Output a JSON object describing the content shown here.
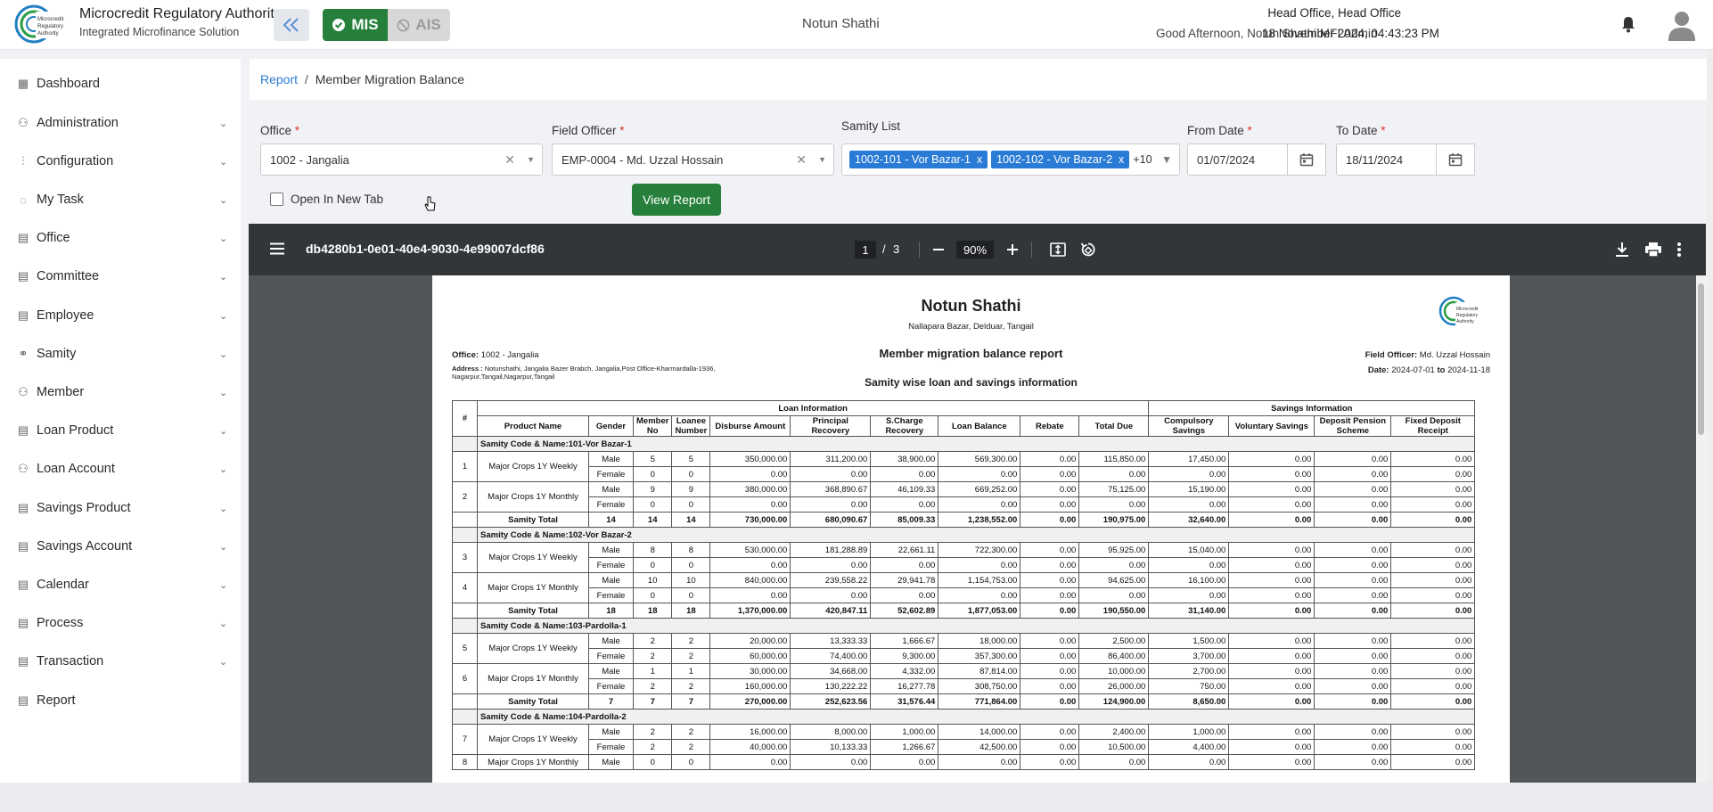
{
  "header": {
    "org_name": "Microcredit Regulatory Authority",
    "org_subtitle": "Integrated Microfinance Solution",
    "mis_label": "MIS",
    "ais_label": "AIS",
    "center_title": "Notun Shathi",
    "location": "Head Office, Head Office",
    "greeting": "Good Afternoon, Notun Shathi MFI Admin",
    "datetime": "18 November 2024, 04:43:23 PM"
  },
  "sidebar": {
    "items": [
      {
        "label": "Dashboard",
        "icon": "grid-icon"
      },
      {
        "label": "Administration",
        "icon": "admin-icon"
      },
      {
        "label": "Configuration",
        "icon": "sliders-icon"
      },
      {
        "label": "My Task",
        "icon": "task-icon"
      },
      {
        "label": "Office",
        "icon": "office-icon"
      },
      {
        "label": "Committee",
        "icon": "committee-icon"
      },
      {
        "label": "Employee",
        "icon": "employee-icon"
      },
      {
        "label": "Samity",
        "icon": "samity-icon"
      },
      {
        "label": "Member",
        "icon": "member-icon"
      },
      {
        "label": "Loan Product",
        "icon": "loan-product-icon"
      },
      {
        "label": "Loan Account",
        "icon": "loan-account-icon"
      },
      {
        "label": "Savings Product",
        "icon": "savings-product-icon"
      },
      {
        "label": "Savings Account",
        "icon": "savings-account-icon"
      },
      {
        "label": "Calendar",
        "icon": "calendar-icon"
      },
      {
        "label": "Process",
        "icon": "process-icon"
      },
      {
        "label": "Transaction",
        "icon": "transaction-icon"
      },
      {
        "label": "Report",
        "icon": "report-icon"
      }
    ]
  },
  "breadcrumb": {
    "root": "Report",
    "sep": "/",
    "current": "Member Migration Balance"
  },
  "filters": {
    "office_label": "Office",
    "office_value": "1002 - Jangalia",
    "fo_label": "Field Officer",
    "fo_value": "EMP-0004 - Md. Uzzal Hossain",
    "samity_label": "Samity List",
    "samity_chips": [
      "1002-101 - Vor Bazar-1",
      "1002-102 - Vor Bazar-2"
    ],
    "samity_more": "+10",
    "from_label": "From Date",
    "from_value": "01/07/2024",
    "to_label": "To Date",
    "to_value": "18/11/2024",
    "new_tab_label": "Open In New Tab",
    "view_button": "View Report",
    "required_mark": "*"
  },
  "pdf": {
    "filename": "db4280b1-0e01-40e4-9030-4e99007dcf86",
    "page_current": "1",
    "page_sep": "/",
    "page_total": "3",
    "zoom": "90%"
  },
  "report": {
    "org": "Notun Shathi",
    "org_address": "Nallapara Bazar, Delduar, Tangail",
    "office_label": "Office:",
    "office": "1002 - Jangalia",
    "address_label": "Address :",
    "address_line1": "Notunshathi, Jangalia Bazer Brabch, Jangalia,Post Office-Kharmardalla-1936,",
    "address_line2": "Nagarpur,Tangail,Nagarpur,Tangail",
    "title": "Member migration balance report",
    "subtitle": "Samity wise loan and savings information",
    "fo_label": "Field Officer:",
    "fo": "Md. Uzzal Hossain",
    "date_label": "Date:",
    "date_from": "2024-07-01",
    "date_to_word": "to",
    "date_to": "2024-11-18",
    "group_loan": "Loan Information",
    "group_savings": "Savings Information",
    "columns": [
      "#",
      "Product Name",
      "Gender",
      "Member No",
      "Loanee Number",
      "Disburse Amount",
      "Principal Recovery",
      "S.Charge Recovery",
      "Loan Balance",
      "Rebate",
      "Total Due",
      "Compulsory Savings",
      "Voluntary Savings",
      "Deposit Pension Scheme",
      "Fixed Deposit Receipt"
    ],
    "sections": [
      {
        "name": "Samity Code & Name:101-Vor Bazar-1",
        "rows": [
          {
            "no": "1",
            "product": "Major Crops 1Y Weekly",
            "lines": [
              [
                "Male",
                "5",
                "5",
                "350,000.00",
                "311,200.00",
                "38,900.00",
                "569,300.00",
                "0.00",
                "115,850.00",
                "17,450.00",
                "0.00",
                "0.00",
                "0.00"
              ],
              [
                "Female",
                "0",
                "0",
                "0.00",
                "0.00",
                "0.00",
                "0.00",
                "0.00",
                "0.00",
                "0.00",
                "0.00",
                "0.00",
                "0.00"
              ]
            ]
          },
          {
            "no": "2",
            "product": "Major Crops 1Y Monthly",
            "lines": [
              [
                "Male",
                "9",
                "9",
                "380,000.00",
                "368,890.67",
                "46,109.33",
                "669,252.00",
                "0.00",
                "75,125.00",
                "15,190.00",
                "0.00",
                "0.00",
                "0.00"
              ],
              [
                "Female",
                "0",
                "0",
                "0.00",
                "0.00",
                "0.00",
                "0.00",
                "0.00",
                "0.00",
                "0.00",
                "0.00",
                "0.00",
                "0.00"
              ]
            ]
          }
        ],
        "total": [
          "Samity Total",
          "14",
          "14",
          "14",
          "730,000.00",
          "680,090.67",
          "85,009.33",
          "1,238,552.00",
          "0.00",
          "190,975.00",
          "32,640.00",
          "0.00",
          "0.00",
          "0.00"
        ]
      },
      {
        "name": "Samity Code & Name:102-Vor Bazar-2",
        "rows": [
          {
            "no": "3",
            "product": "Major Crops 1Y Weekly",
            "lines": [
              [
                "Male",
                "8",
                "8",
                "530,000.00",
                "181,288.89",
                "22,661.11",
                "722,300.00",
                "0.00",
                "95,925.00",
                "15,040.00",
                "0.00",
                "0.00",
                "0.00"
              ],
              [
                "Female",
                "0",
                "0",
                "0.00",
                "0.00",
                "0.00",
                "0.00",
                "0.00",
                "0.00",
                "0.00",
                "0.00",
                "0.00",
                "0.00"
              ]
            ]
          },
          {
            "no": "4",
            "product": "Major Crops 1Y Monthly",
            "lines": [
              [
                "Male",
                "10",
                "10",
                "840,000.00",
                "239,558.22",
                "29,941.78",
                "1,154,753.00",
                "0.00",
                "94,625.00",
                "16,100.00",
                "0.00",
                "0.00",
                "0.00"
              ],
              [
                "Female",
                "0",
                "0",
                "0.00",
                "0.00",
                "0.00",
                "0.00",
                "0.00",
                "0.00",
                "0.00",
                "0.00",
                "0.00",
                "0.00"
              ]
            ]
          }
        ],
        "total": [
          "Samity Total",
          "18",
          "18",
          "18",
          "1,370,000.00",
          "420,847.11",
          "52,602.89",
          "1,877,053.00",
          "0.00",
          "190,550.00",
          "31,140.00",
          "0.00",
          "0.00",
          "0.00"
        ]
      },
      {
        "name": "Samity Code & Name:103-Pardolla-1",
        "rows": [
          {
            "no": "5",
            "product": "Major Crops 1Y Weekly",
            "lines": [
              [
                "Male",
                "2",
                "2",
                "20,000.00",
                "13,333.33",
                "1,666.67",
                "18,000.00",
                "0.00",
                "2,500.00",
                "1,500.00",
                "0.00",
                "0.00",
                "0.00"
              ],
              [
                "Female",
                "2",
                "2",
                "60,000.00",
                "74,400.00",
                "9,300.00",
                "357,300.00",
                "0.00",
                "86,400.00",
                "3,700.00",
                "0.00",
                "0.00",
                "0.00"
              ]
            ]
          },
          {
            "no": "6",
            "product": "Major Crops 1Y Monthly",
            "lines": [
              [
                "Male",
                "1",
                "1",
                "30,000.00",
                "34,668.00",
                "4,332.00",
                "87,814.00",
                "0.00",
                "10,000.00",
                "2,700.00",
                "0.00",
                "0.00",
                "0.00"
              ],
              [
                "Female",
                "2",
                "2",
                "160,000.00",
                "130,222.22",
                "16,277.78",
                "308,750.00",
                "0.00",
                "26,000.00",
                "750.00",
                "0.00",
                "0.00",
                "0.00"
              ]
            ]
          }
        ],
        "total": [
          "Samity Total",
          "7",
          "7",
          "7",
          "270,000.00",
          "252,623.56",
          "31,576.44",
          "771,864.00",
          "0.00",
          "124,900.00",
          "8,650.00",
          "0.00",
          "0.00",
          "0.00"
        ]
      },
      {
        "name": "Samity Code & Name:104-Pardolla-2",
        "rows": [
          {
            "no": "7",
            "product": "Major Crops 1Y Weekly",
            "lines": [
              [
                "Male",
                "2",
                "2",
                "16,000.00",
                "8,000.00",
                "1,000.00",
                "14,000.00",
                "0.00",
                "2,400.00",
                "1,000.00",
                "0.00",
                "0.00",
                "0.00"
              ],
              [
                "Female",
                "2",
                "2",
                "40,000.00",
                "10,133.33",
                "1,266.67",
                "42,500.00",
                "0.00",
                "10,500.00",
                "4,400.00",
                "0.00",
                "0.00",
                "0.00"
              ]
            ]
          },
          {
            "no": "8",
            "product": "Major Crops 1Y Monthly",
            "lines": [
              [
                "Male",
                "0",
                "0",
                "0.00",
                "0.00",
                "0.00",
                "0.00",
                "0.00",
                "0.00",
                "0.00",
                "0.00",
                "0.00",
                "0.00"
              ]
            ]
          }
        ],
        "total": null
      }
    ]
  },
  "colors": {
    "accent": "#2a7bd5",
    "brand_green": "#26803b",
    "pdf_toolbar": "#323639",
    "pdf_bg": "#525659"
  }
}
